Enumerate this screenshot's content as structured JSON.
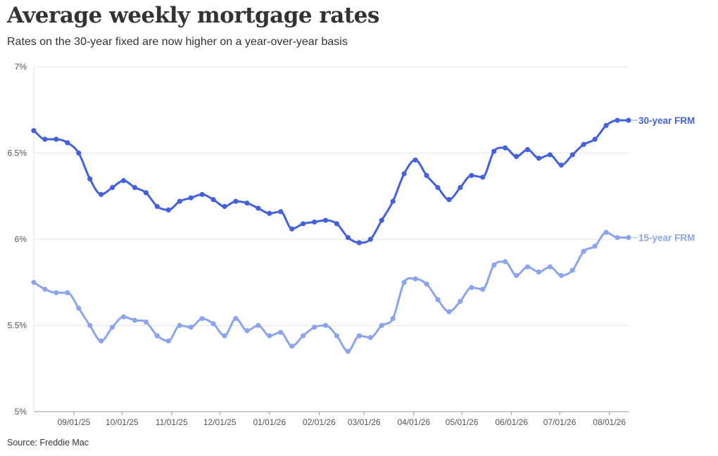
{
  "header": {
    "title": "Average weekly mortgage rates",
    "subtitle": "Rates on the 30-year fixed are now higher on a year-over-year basis"
  },
  "footer": {
    "source": "Source: Freddie Mac"
  },
  "colors": {
    "frm30": "#4361dd",
    "frm15": "#8aa4ee",
    "grid": "#e6e6e6",
    "axis": "#999999",
    "text": "#333333"
  },
  "chart_data": {
    "type": "line",
    "title": "Average weekly mortgage rates",
    "subtitle": "Rates on the 30-year fixed are now higher on a year-over-year basis",
    "xlabel": "",
    "ylabel": "",
    "grid": true,
    "legend": "direct labels at right end of lines",
    "ylim": [
      5,
      7
    ],
    "xlim": [
      "2025-08-07",
      "2026-08-13"
    ],
    "y_ticks": [
      5,
      5.5,
      6,
      6.5,
      7
    ],
    "y_tick_labels": [
      "5%",
      "5.5%",
      "6%",
      "6.5%",
      "7%"
    ],
    "x_ticks": [
      "2025-09-01",
      "2025-10-01",
      "2025-11-01",
      "2025-12-01",
      "2026-01-01",
      "2026-02-01",
      "2026-03-01",
      "2026-04-01",
      "2026-05-01",
      "2026-06-01",
      "2026-07-01",
      "2026-08-01"
    ],
    "x_tick_labels": [
      "09/01/25",
      "10/01/25",
      "11/01/25",
      "12/01/25",
      "01/01/26",
      "02/01/26",
      "03/01/26",
      "04/01/26",
      "05/01/26",
      "06/01/26",
      "07/01/26",
      "08/01/26"
    ],
    "x": [
      "2025-08-07",
      "2025-08-14",
      "2025-08-21",
      "2025-08-28",
      "2025-09-04",
      "2025-09-11",
      "2025-09-18",
      "2025-09-25",
      "2025-10-02",
      "2025-10-09",
      "2025-10-16",
      "2025-10-23",
      "2025-10-30",
      "2025-11-06",
      "2025-11-13",
      "2025-11-20",
      "2025-11-27",
      "2025-12-04",
      "2025-12-11",
      "2025-12-18",
      "2025-12-25",
      "2026-01-01",
      "2026-01-08",
      "2026-01-15",
      "2026-01-22",
      "2026-01-29",
      "2026-02-05",
      "2026-02-12",
      "2026-02-19",
      "2026-02-26",
      "2026-03-05",
      "2026-03-12",
      "2026-03-19",
      "2026-03-26",
      "2026-04-02",
      "2026-04-09",
      "2026-04-16",
      "2026-04-23",
      "2026-04-30",
      "2026-05-07",
      "2026-05-14",
      "2026-05-21",
      "2026-05-28",
      "2026-06-04",
      "2026-06-11",
      "2026-06-18",
      "2026-06-25",
      "2026-07-02",
      "2026-07-09",
      "2026-07-16",
      "2026-07-23",
      "2026-07-30",
      "2026-08-06",
      "2026-08-13"
    ],
    "series": [
      {
        "name": "30-year FRM",
        "values": [
          6.63,
          6.58,
          6.58,
          6.56,
          6.5,
          6.35,
          6.26,
          6.3,
          6.34,
          6.3,
          6.27,
          6.19,
          6.17,
          6.22,
          6.24,
          6.26,
          6.23,
          6.19,
          6.22,
          6.21,
          6.18,
          6.15,
          6.16,
          6.06,
          6.09,
          6.1,
          6.11,
          6.09,
          6.01,
          5.98,
          6.0,
          6.11,
          6.22,
          6.38,
          6.46,
          6.37,
          6.3,
          6.23,
          6.3,
          6.37,
          6.36,
          6.51,
          6.53,
          6.48,
          6.52,
          6.47,
          6.49,
          6.43,
          6.49,
          6.55,
          6.58,
          6.66,
          6.69,
          6.69
        ]
      },
      {
        "name": "15-year FRM",
        "values": [
          5.75,
          5.71,
          5.69,
          5.69,
          5.6,
          5.5,
          5.41,
          5.49,
          5.55,
          5.53,
          5.52,
          5.44,
          5.41,
          5.5,
          5.49,
          5.54,
          5.51,
          5.44,
          5.54,
          5.47,
          5.5,
          5.44,
          5.46,
          5.38,
          5.44,
          5.49,
          5.5,
          5.44,
          5.35,
          5.44,
          5.43,
          5.5,
          5.54,
          5.75,
          5.77,
          5.74,
          5.65,
          5.58,
          5.64,
          5.72,
          5.71,
          5.85,
          5.87,
          5.79,
          5.84,
          5.81,
          5.84,
          5.79,
          5.82,
          5.93,
          5.96,
          6.04,
          6.01,
          6.01
        ]
      }
    ]
  }
}
